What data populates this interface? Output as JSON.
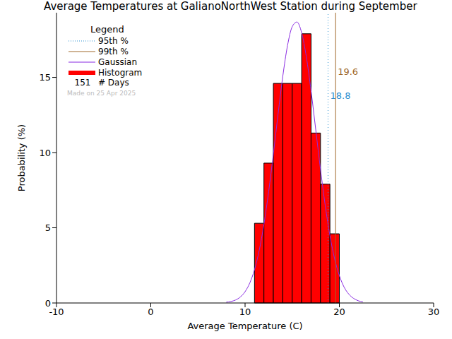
{
  "chart_data": {
    "type": "histogram",
    "title": "Average Temperatures at GalianoNorthWest Station during September",
    "x_label": "Average Temperature (C)",
    "y_label": "Probability (%)",
    "bins": [
      11,
      12,
      13,
      14,
      15,
      16,
      17,
      18,
      19,
      20
    ],
    "counts": [
      5.3,
      9.3,
      14.6,
      14.6,
      14.6,
      17.9,
      11.3,
      7.9,
      4.6
    ],
    "color": "#ff0000",
    "histogram_name": "Histogram",
    "gaussian": {
      "name": "Gaussian",
      "color": "#8a2be2",
      "x": [
        8,
        8.5,
        9,
        9.5,
        10,
        10.5,
        11,
        11.5,
        12,
        12.5,
        13,
        13.5,
        14,
        14.5,
        15,
        15.5,
        16,
        16.5,
        17,
        17.5,
        18,
        18.5,
        19,
        19.5,
        20,
        20.5,
        21,
        21.5,
        22,
        22.5
      ],
      "values": [
        0.05,
        0.1,
        0.2,
        0.4,
        0.75,
        1.33,
        2.21,
        3.5,
        5.23,
        7.4,
        9.91,
        12.56,
        15.07,
        17.11,
        18.37,
        18.68,
        17.97,
        16.36,
        14.1,
        11.5,
        8.88,
        6.49,
        4.48,
        2.93,
        1.82,
        1.06,
        0.59,
        0.31,
        0.15,
        0.07
      ]
    },
    "percentiles": [
      {
        "name": "95th %",
        "value": 18.8,
        "color": "#2a8fd0",
        "line_style": "dotted"
      },
      {
        "name": "99th %",
        "value": 19.6,
        "color": "#a0682a",
        "line_style": "solid"
      }
    ],
    "legend_title": "Legend",
    "days": 151,
    "days_label": "# Days",
    "note": "Made on 25 Apr 2025",
    "xlim": [
      -10,
      30
    ],
    "xticks": [
      -10,
      0,
      10,
      20,
      30
    ],
    "ylim": [
      0,
      19.3
    ],
    "yticks": [
      0,
      5,
      10,
      15
    ]
  }
}
